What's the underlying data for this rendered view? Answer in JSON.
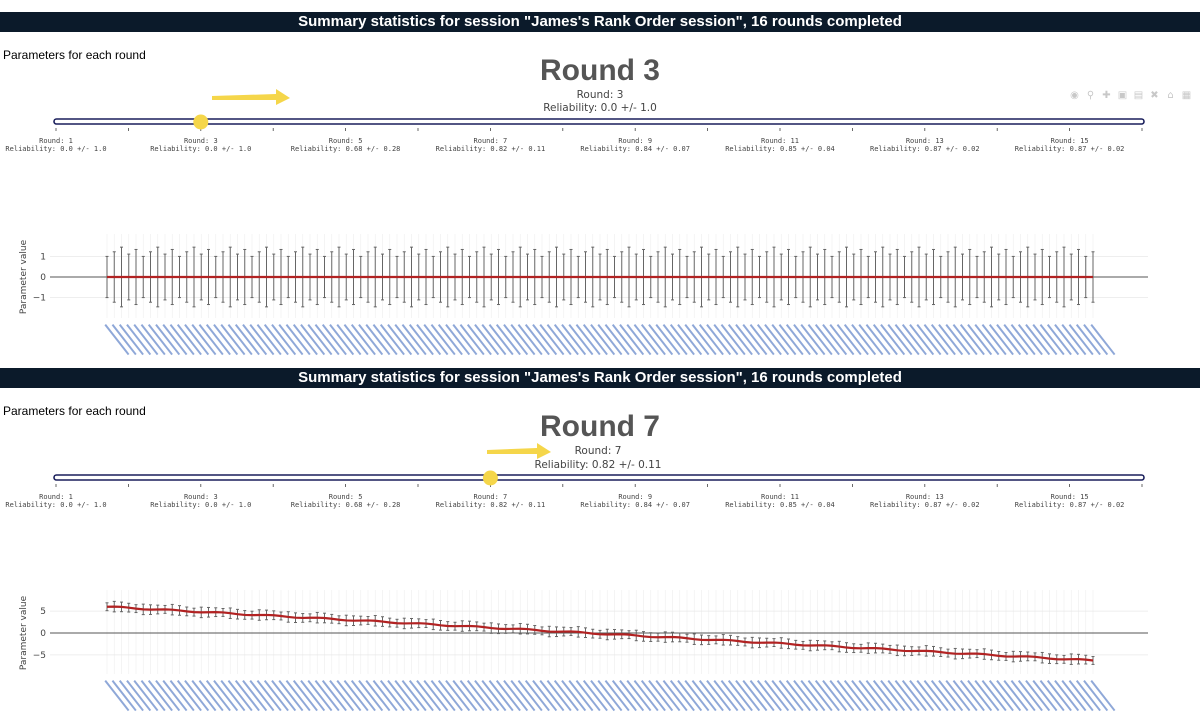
{
  "header_text": "Summary statistics for session \"James's Rank Order session\", 16 rounds completed",
  "params_label": "Parameters for each round",
  "slider_ticks": [
    {
      "round": "Round: 1",
      "rel": "Reliability: 0.0 +/- 1.0"
    },
    {
      "round": "Round: 3",
      "rel": "Reliability: 0.0 +/- 1.0"
    },
    {
      "round": "Round: 5",
      "rel": "Reliability: 0.68 +/- 0.28"
    },
    {
      "round": "Round: 7",
      "rel": "Reliability: 0.82 +/- 0.11"
    },
    {
      "round": "Round: 9",
      "rel": "Reliability: 0.84 +/- 0.07"
    },
    {
      "round": "Round: 11",
      "rel": "Reliability: 0.85 +/- 0.04"
    },
    {
      "round": "Round: 13",
      "rel": "Reliability: 0.87 +/- 0.02"
    },
    {
      "round": "Round: 15",
      "rel": "Reliability: 0.87 +/- 0.02"
    }
  ],
  "colors": {
    "header_bg": "#0b1a2a",
    "slider_rail": "#1a1f5c",
    "slider_handle": "#f5d64a",
    "arrow": "#f5d64a",
    "line": "#b22222",
    "errorbar": "#666666",
    "xtick": "#8fa8d8"
  },
  "modebar_icons": [
    "camera-icon",
    "zoom-icon",
    "pan-icon",
    "zoom-in-icon",
    "zoom-out-icon",
    "autoscale-icon",
    "home-icon",
    "plotly-logo-icon"
  ],
  "panels": [
    {
      "round_title": "Round 3",
      "current_round": "Round: 3",
      "current_reliability": "Reliability: 0.0 +/- 1.0",
      "slider_position": 1
    },
    {
      "round_title": "Round 7",
      "current_round": "Round: 7",
      "current_reliability": "Reliability: 0.82 +/- 0.11",
      "slider_position": 3
    }
  ],
  "chart_data": [
    {
      "type": "line",
      "ylabel": "Parameter value",
      "yticks": [
        1,
        0,
        -1
      ],
      "ylim": [
        -1.7,
        1.7
      ],
      "n_items": 137,
      "values_start": 0,
      "values_end": 0,
      "error_half_width": 1.3,
      "grid": true
    },
    {
      "type": "line",
      "ylabel": "Parameter value",
      "yticks": [
        5,
        0,
        -5
      ],
      "ylim": [
        -8,
        8
      ],
      "n_items": 137,
      "values_start": 6,
      "values_end": -6.3,
      "error_half_width": 1.0,
      "grid": true
    }
  ]
}
